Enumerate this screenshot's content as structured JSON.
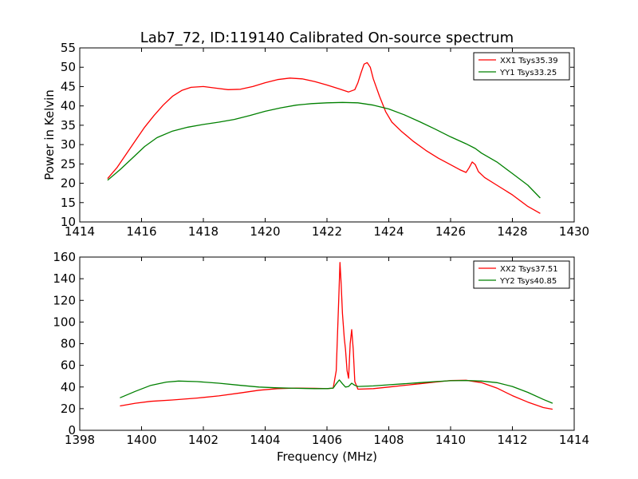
{
  "figure": {
    "title": "Lab7_72, ID:119140 Calibrated On-source spectrum",
    "xlabel": "Frequency (MHz)",
    "ylabel": "Power in Kelvin"
  },
  "chart_data": [
    {
      "type": "line",
      "xlim": [
        1414,
        1430
      ],
      "ylim": [
        10,
        55
      ],
      "xticks": [
        1414,
        1416,
        1418,
        1420,
        1422,
        1424,
        1426,
        1428,
        1430
      ],
      "yticks": [
        10,
        15,
        20,
        25,
        30,
        35,
        40,
        45,
        50,
        55
      ],
      "legend_position": "top-right",
      "series": [
        {
          "name": "XX1 Tsys35.39",
          "color": "#ff0000",
          "points": [
            [
              1414.9,
              21.2
            ],
            [
              1415.2,
              24.0
            ],
            [
              1415.5,
              27.5
            ],
            [
              1415.8,
              31.0
            ],
            [
              1416.1,
              34.5
            ],
            [
              1416.4,
              37.5
            ],
            [
              1416.7,
              40.2
            ],
            [
              1417.0,
              42.5
            ],
            [
              1417.3,
              44.0
            ],
            [
              1417.6,
              44.8
            ],
            [
              1418.0,
              45.0
            ],
            [
              1418.4,
              44.6
            ],
            [
              1418.8,
              44.2
            ],
            [
              1419.2,
              44.3
            ],
            [
              1419.6,
              45.0
            ],
            [
              1420.0,
              46.0
            ],
            [
              1420.4,
              46.8
            ],
            [
              1420.8,
              47.2
            ],
            [
              1421.2,
              47.0
            ],
            [
              1421.6,
              46.3
            ],
            [
              1422.0,
              45.4
            ],
            [
              1422.4,
              44.4
            ],
            [
              1422.7,
              43.6
            ],
            [
              1422.9,
              44.2
            ],
            [
              1423.0,
              46.0
            ],
            [
              1423.1,
              48.5
            ],
            [
              1423.2,
              50.8
            ],
            [
              1423.3,
              51.2
            ],
            [
              1423.4,
              50.0
            ],
            [
              1423.5,
              47.0
            ],
            [
              1423.7,
              42.5
            ],
            [
              1423.9,
              38.5
            ],
            [
              1424.1,
              35.8
            ],
            [
              1424.4,
              33.5
            ],
            [
              1424.8,
              30.8
            ],
            [
              1425.2,
              28.5
            ],
            [
              1425.6,
              26.5
            ],
            [
              1426.0,
              24.8
            ],
            [
              1426.3,
              23.5
            ],
            [
              1426.5,
              22.8
            ],
            [
              1426.6,
              24.0
            ],
            [
              1426.7,
              25.5
            ],
            [
              1426.8,
              24.8
            ],
            [
              1426.9,
              23.0
            ],
            [
              1427.1,
              21.5
            ],
            [
              1427.5,
              19.5
            ],
            [
              1428.0,
              17.0
            ],
            [
              1428.5,
              14.0
            ],
            [
              1428.9,
              12.2
            ]
          ]
        },
        {
          "name": "YY1 Tsys33.25",
          "color": "#008000",
          "points": [
            [
              1414.9,
              20.8
            ],
            [
              1415.3,
              23.5
            ],
            [
              1415.7,
              26.5
            ],
            [
              1416.1,
              29.5
            ],
            [
              1416.5,
              31.8
            ],
            [
              1417.0,
              33.5
            ],
            [
              1417.5,
              34.5
            ],
            [
              1418.0,
              35.2
            ],
            [
              1418.5,
              35.8
            ],
            [
              1419.0,
              36.5
            ],
            [
              1419.5,
              37.5
            ],
            [
              1420.0,
              38.6
            ],
            [
              1420.5,
              39.5
            ],
            [
              1421.0,
              40.2
            ],
            [
              1421.5,
              40.6
            ],
            [
              1422.0,
              40.8
            ],
            [
              1422.5,
              40.9
            ],
            [
              1423.0,
              40.8
            ],
            [
              1423.5,
              40.2
            ],
            [
              1424.0,
              39.2
            ],
            [
              1424.5,
              37.7
            ],
            [
              1425.0,
              35.9
            ],
            [
              1425.5,
              34.0
            ],
            [
              1426.0,
              32.0
            ],
            [
              1426.5,
              30.2
            ],
            [
              1426.8,
              29.0
            ],
            [
              1427.0,
              27.8
            ],
            [
              1427.5,
              25.5
            ],
            [
              1428.0,
              22.5
            ],
            [
              1428.5,
              19.5
            ],
            [
              1428.9,
              16.2
            ]
          ]
        }
      ]
    },
    {
      "type": "line",
      "xlim": [
        1398,
        1414
      ],
      "ylim": [
        0,
        160
      ],
      "xticks": [
        1398,
        1400,
        1402,
        1404,
        1406,
        1408,
        1410,
        1412,
        1414
      ],
      "yticks": [
        0,
        20,
        40,
        60,
        80,
        100,
        120,
        140,
        160
      ],
      "legend_position": "top-right",
      "series": [
        {
          "name": "XX2 Tsys37.51",
          "color": "#ff0000",
          "points": [
            [
              1399.3,
              22.5
            ],
            [
              1399.8,
              25.0
            ],
            [
              1400.3,
              26.8
            ],
            [
              1401.0,
              28.0
            ],
            [
              1401.8,
              29.8
            ],
            [
              1402.5,
              31.8
            ],
            [
              1403.2,
              34.5
            ],
            [
              1403.8,
              37.0
            ],
            [
              1404.4,
              38.5
            ],
            [
              1405.0,
              39.0
            ],
            [
              1405.6,
              38.8
            ],
            [
              1406.0,
              38.5
            ],
            [
              1406.2,
              39.0
            ],
            [
              1406.3,
              55.0
            ],
            [
              1406.38,
              120.0
            ],
            [
              1406.42,
              155.0
            ],
            [
              1406.46,
              135.0
            ],
            [
              1406.5,
              108.0
            ],
            [
              1406.56,
              85.0
            ],
            [
              1406.6,
              75.0
            ],
            [
              1406.65,
              55.0
            ],
            [
              1406.7,
              48.0
            ],
            [
              1406.75,
              80.0
            ],
            [
              1406.8,
              93.0
            ],
            [
              1406.85,
              75.0
            ],
            [
              1406.9,
              45.0
            ],
            [
              1407.0,
              38.0
            ],
            [
              1407.5,
              38.5
            ],
            [
              1408.0,
              40.0
            ],
            [
              1409.0,
              43.0
            ],
            [
              1409.5,
              44.5
            ],
            [
              1410.0,
              46.0
            ],
            [
              1410.5,
              46.2
            ],
            [
              1411.0,
              44.0
            ],
            [
              1411.5,
              39.0
            ],
            [
              1412.0,
              32.0
            ],
            [
              1412.5,
              26.0
            ],
            [
              1413.0,
              21.0
            ],
            [
              1413.3,
              19.5
            ]
          ]
        },
        {
          "name": "YY2 Tsys40.85",
          "color": "#008000",
          "points": [
            [
              1399.3,
              30.0
            ],
            [
              1399.8,
              36.0
            ],
            [
              1400.3,
              41.5
            ],
            [
              1400.8,
              44.5
            ],
            [
              1401.2,
              45.5
            ],
            [
              1401.8,
              45.0
            ],
            [
              1402.5,
              43.5
            ],
            [
              1403.2,
              41.5
            ],
            [
              1403.8,
              40.0
            ],
            [
              1404.4,
              39.2
            ],
            [
              1405.0,
              38.8
            ],
            [
              1405.6,
              38.5
            ],
            [
              1406.0,
              38.5
            ],
            [
              1406.2,
              39.0
            ],
            [
              1406.3,
              43.0
            ],
            [
              1406.4,
              46.5
            ],
            [
              1406.5,
              43.0
            ],
            [
              1406.6,
              40.0
            ],
            [
              1406.7,
              40.5
            ],
            [
              1406.8,
              43.5
            ],
            [
              1406.9,
              41.5
            ],
            [
              1407.0,
              40.5
            ],
            [
              1407.5,
              41.0
            ],
            [
              1408.0,
              42.0
            ],
            [
              1408.5,
              43.0
            ],
            [
              1409.0,
              44.0
            ],
            [
              1409.5,
              45.0
            ],
            [
              1410.0,
              45.8
            ],
            [
              1410.5,
              46.0
            ],
            [
              1411.0,
              45.5
            ],
            [
              1411.5,
              44.0
            ],
            [
              1412.0,
              40.5
            ],
            [
              1412.5,
              35.0
            ],
            [
              1413.0,
              28.5
            ],
            [
              1413.3,
              25.0
            ]
          ]
        }
      ]
    }
  ]
}
